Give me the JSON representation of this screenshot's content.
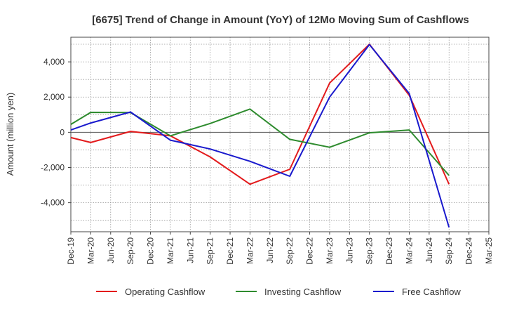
{
  "chart_data": {
    "type": "line",
    "title": "[6675]  Trend of Change in Amount (YoY) of 12Mo Moving Sum of Cashflows",
    "xlabel": "",
    "ylabel": "Amount (million yen)",
    "ylim": [
      -5650,
      5400
    ],
    "yticks": [
      -4000,
      -2000,
      0,
      2000,
      4000
    ],
    "ytick_labels": [
      "-4,000",
      "-2,000",
      "0",
      "2,000",
      "4,000"
    ],
    "categories": [
      "Dec-19",
      "Mar-20",
      "Jun-20",
      "Sep-20",
      "Dec-20",
      "Mar-21",
      "Jun-21",
      "Sep-21",
      "Dec-21",
      "Mar-22",
      "Jun-22",
      "Sep-22",
      "Dec-22",
      "Mar-23",
      "Jun-23",
      "Sep-23",
      "Dec-23",
      "Mar-24",
      "Jun-24",
      "Sep-24",
      "Dec-24",
      "Mar-25"
    ],
    "grid": true,
    "legend_position": "bottom",
    "series": [
      {
        "name": "Operating Cashflow",
        "color": "#e31a1c",
        "values": [
          -300,
          -580,
          null,
          50,
          null,
          -200,
          null,
          -1400,
          null,
          -2950,
          null,
          -2100,
          null,
          2800,
          null,
          5000,
          null,
          2100,
          null,
          -2950,
          null,
          null
        ]
      },
      {
        "name": "Investing Cashflow",
        "color": "#2e8b2e",
        "values": [
          450,
          1130,
          null,
          1120,
          null,
          -200,
          null,
          500,
          null,
          1320,
          null,
          -400,
          null,
          -850,
          null,
          -30,
          null,
          130,
          null,
          -2450,
          null,
          null
        ]
      },
      {
        "name": "Free Cashflow",
        "color": "#1a1acd",
        "values": [
          130,
          530,
          null,
          1150,
          null,
          -450,
          null,
          -950,
          null,
          -1650,
          null,
          -2500,
          null,
          2000,
          null,
          4980,
          null,
          2200,
          null,
          -5400,
          null,
          null
        ]
      }
    ]
  }
}
